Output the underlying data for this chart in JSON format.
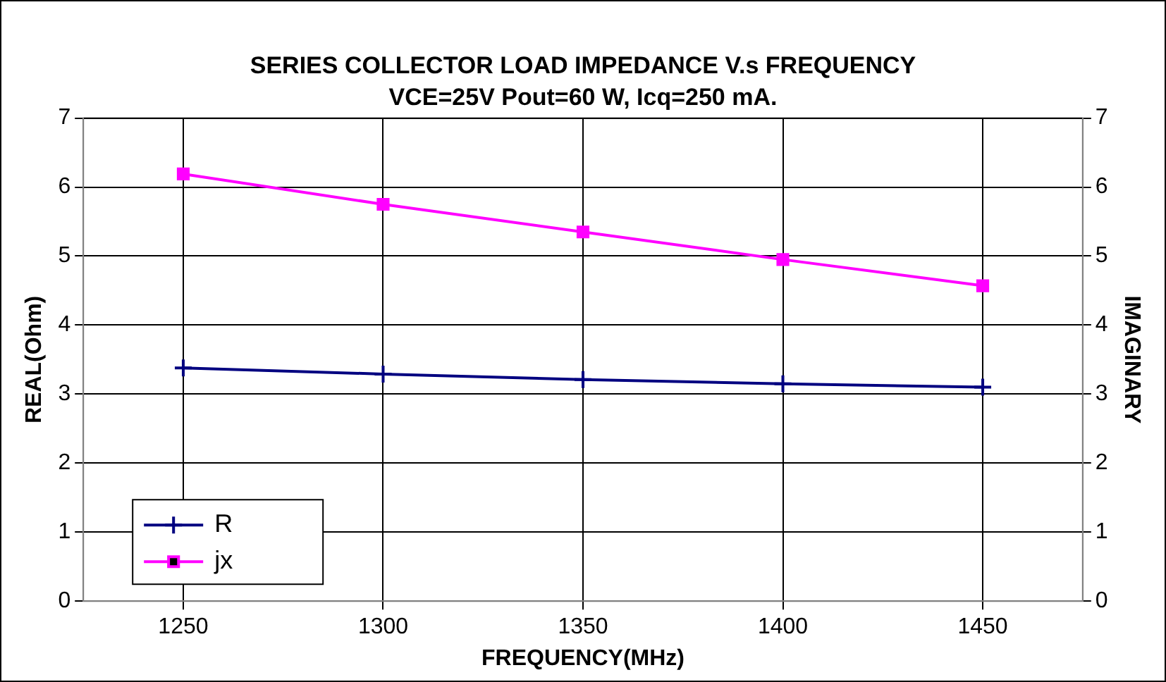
{
  "chart_data": {
    "type": "line",
    "title": "SERIES COLLECTOR LOAD IMPEDANCE V.s FREQUENCY",
    "subtitle": "VCE=25V Pout=60 W, Icq=250 mA.",
    "xlabel": "FREQUENCY(MHz)",
    "ylabel": "REAL(Ohm)",
    "y2label": "IMAGINARY",
    "categories": [
      "1250",
      "1300",
      "1350",
      "1400",
      "1450"
    ],
    "series": [
      {
        "name": "R",
        "color": "#000080",
        "marker": "cross",
        "values": [
          3.38,
          3.29,
          3.21,
          3.15,
          3.1
        ]
      },
      {
        "name": "jx",
        "color": "#ff00ff",
        "marker": "square",
        "axis": "y2",
        "values": [
          6.19,
          5.75,
          5.35,
          4.95,
          4.57
        ]
      }
    ],
    "ylim": [
      0,
      7
    ],
    "yticks": [
      0,
      1,
      2,
      3,
      4,
      5,
      6,
      7
    ],
    "y2lim": [
      0,
      7
    ],
    "y2ticks": [
      0,
      1,
      2,
      3,
      4,
      5,
      6,
      7
    ],
    "grid": true,
    "legend": "bottom left",
    "line_style": "solid"
  }
}
